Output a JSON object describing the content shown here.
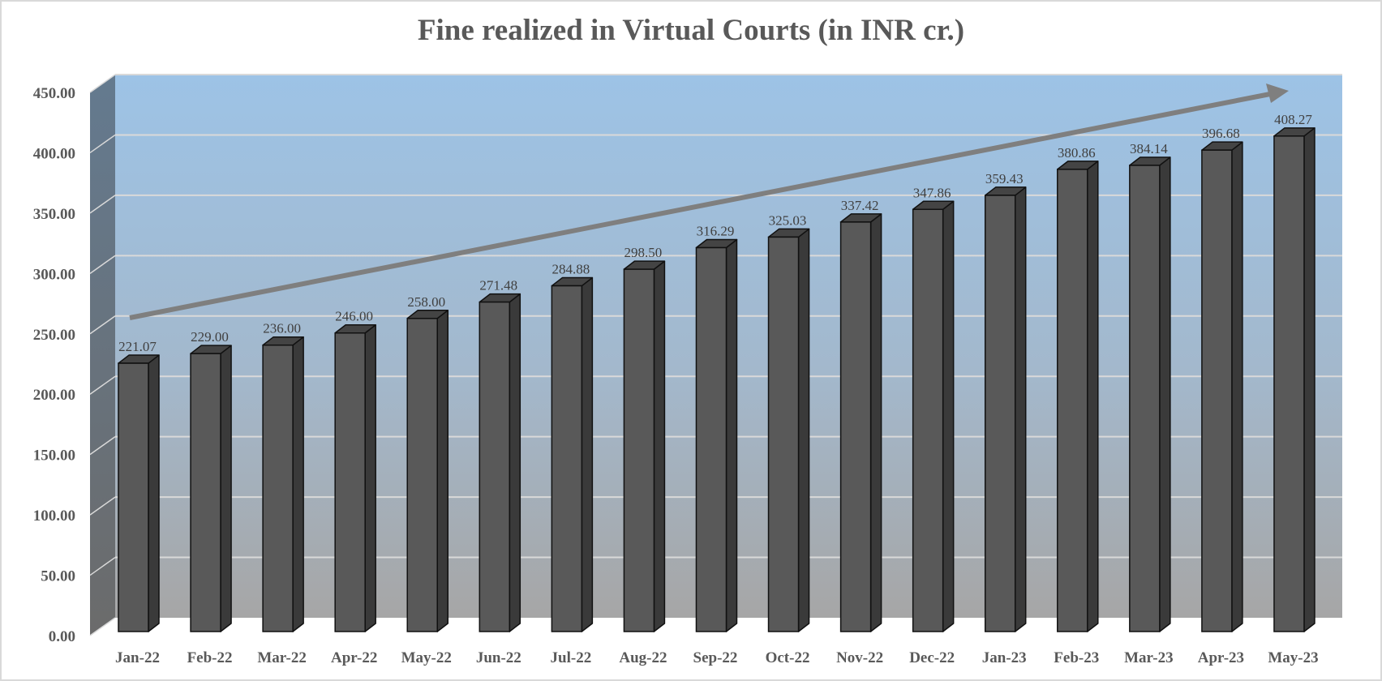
{
  "chart_data": {
    "type": "bar",
    "title": "Fine realized in Virtual Courts (in INR cr.)",
    "xlabel": "",
    "ylabel": "",
    "ylim": [
      0,
      450
    ],
    "yticks": [
      "0.00",
      "50.00",
      "100.00",
      "150.00",
      "200.00",
      "250.00",
      "300.00",
      "350.00",
      "400.00",
      "450.00"
    ],
    "grid": true,
    "legend": "none",
    "style": "3d-column with upward trend arrow",
    "categories": [
      "Jan-22",
      "Feb-22",
      "Mar-22",
      "Apr-22",
      "May-22",
      "Jun-22",
      "Jul-22",
      "Aug-22",
      "Sep-22",
      "Oct-22",
      "Nov-22",
      "Dec-22",
      "Jan-23",
      "Feb-23",
      "Mar-23",
      "Apr-23",
      "May-23"
    ],
    "values": [
      221.07,
      229.0,
      236.0,
      246.0,
      258.0,
      271.48,
      284.88,
      298.5,
      316.29,
      325.03,
      337.42,
      347.86,
      359.43,
      380.86,
      384.14,
      396.68,
      408.27
    ],
    "value_labels": [
      "221.07",
      "229.00",
      "236.00",
      "246.00",
      "258.00",
      "271.48",
      "284.88",
      "298.50",
      "316.29",
      "325.03",
      "337.42",
      "347.86",
      "359.43",
      "380.86",
      "384.14",
      "396.68",
      "408.27"
    ],
    "annotations": [
      "upward trend arrow from Jan-22 to May-23"
    ]
  },
  "colors": {
    "bar_front": "#595959",
    "bar_side": "#3a3a3a",
    "bar_top": "#444444",
    "bar_outline": "#111111",
    "wall_top": "#9dc3e6",
    "wall_bottom": "#a6a6a6",
    "side_wall_top": "#647a8f",
    "side_wall_bottom": "#6b6b6b",
    "gridline": "#d9d9d9",
    "arrow": "#7f7f7f",
    "text": "#595959"
  }
}
